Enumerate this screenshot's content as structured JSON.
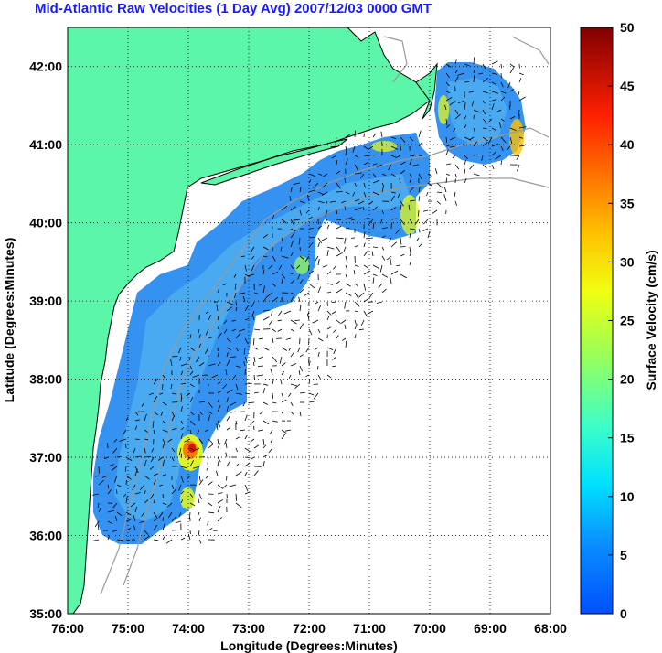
{
  "title": "Mid-Atlantic Raw Velocities (1 Day Avg) 2007/12/03 0000 GMT",
  "map": {
    "xlabel": "Longitude (Degrees:Minutes)",
    "ylabel": "Latitude (Degrees:Minutes)",
    "x_ticks": [
      "76:00",
      "75:00",
      "74:00",
      "73:00",
      "72:00",
      "71:00",
      "70:00",
      "69:00",
      "68:00"
    ],
    "y_ticks": [
      "42:00",
      "41:00",
      "40:00",
      "39:00",
      "38:00",
      "37:00",
      "36:00",
      "35:00"
    ],
    "lon_range": [
      -76,
      -68
    ],
    "lat_range": [
      35,
      42.5
    ],
    "land_color": "#5cf6a8",
    "grid": "dotted"
  },
  "colorbar": {
    "label": "Surface Velocity (cm/s)",
    "ticks": [
      "0",
      "5",
      "10",
      "15",
      "20",
      "25",
      "30",
      "35",
      "40",
      "45",
      "50"
    ],
    "min": 0,
    "max": 50,
    "colormap": "jet"
  }
}
